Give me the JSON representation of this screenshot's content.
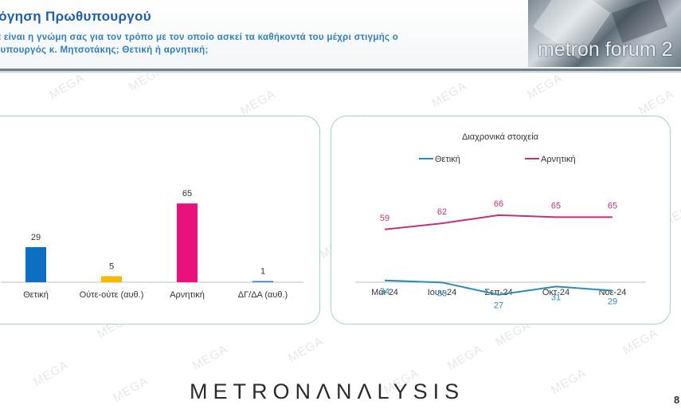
{
  "header": {
    "title": "ολόγηση Πρωθυπουργού",
    "question_line1": "α είναι η γνώμη σας για τον τρόπο με τον οποίο ασκεί τα καθήκοντά του μέχρι στιγμής ο",
    "question_line2": "θυπουργός κ. Μητσοτάκης; Θετική ή αρνητική;",
    "logo_text": "metron forum 2"
  },
  "watermark": "MEGA",
  "footer": {
    "brand": "METRONΛNΛLYSIS",
    "page": "8"
  },
  "colors": {
    "positive": "#0b6fc2",
    "neutral": "#f6b800",
    "negative": "#e8127a",
    "dk": "#2b7fc9",
    "trend_positive": "#2b8ab8",
    "trend_negative": "#c0307e"
  },
  "chart_data": [
    {
      "type": "bar",
      "categories": [
        "Θετική",
        "Ούτε-ούτε (αυθ.)",
        "Αρνητική",
        "ΔΓ/ΔΑ (αυθ.)"
      ],
      "values": [
        29,
        5,
        65,
        1
      ],
      "value_labels": [
        "29",
        "5",
        "65",
        "1"
      ],
      "ylim": [
        0,
        100
      ]
    },
    {
      "type": "line",
      "title": "Διαχρονικά στοιχεία",
      "categories": [
        "Μάι-24",
        "Ιουν-24",
        "Σεπ-24",
        "Οκτ-24",
        "Νοε-24"
      ],
      "series": [
        {
          "name": "Θετική",
          "values": [
            34,
            33,
            27,
            31,
            29
          ],
          "labels": [
            "34",
            "33",
            "27",
            "31",
            "29"
          ]
        },
        {
          "name": "Αρνητική",
          "values": [
            59,
            62,
            66,
            65,
            65
          ],
          "labels": [
            "59",
            "62",
            "66",
            "65",
            "65"
          ]
        }
      ],
      "legend": "top"
    }
  ]
}
